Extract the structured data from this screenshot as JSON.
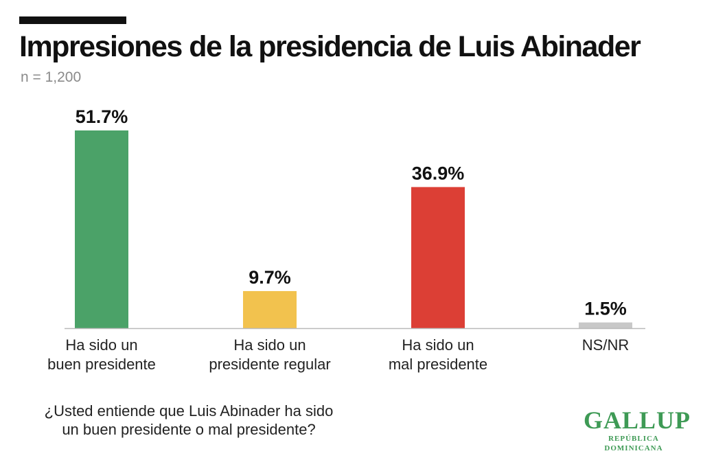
{
  "header": {
    "title": "Impresiones de la presidencia de Luis Abinader",
    "subtitle": "n = 1,200"
  },
  "footer": {
    "question_line1": "¿Usted entiende que Luis Abinader ha sido",
    "question_line2": "un buen presidente o mal presidente?"
  },
  "logo": {
    "word": "GALLUP",
    "sub": "REPÚBLICA DOMINICANA",
    "color": "#3e9a55"
  },
  "chart_data": {
    "type": "bar",
    "categories": [
      [
        "Ha sido un",
        "buen presidente"
      ],
      [
        "Ha sido un",
        "presidente regular"
      ],
      [
        "Ha sido un",
        "mal presidente"
      ],
      [
        "NS/NR"
      ]
    ],
    "values": [
      51.7,
      9.7,
      36.9,
      1.5
    ],
    "value_labels": [
      "51.7%",
      "9.7%",
      "36.9%",
      "1.5%"
    ],
    "colors": [
      "#4ba268",
      "#f2c24e",
      "#dc3f35",
      "#c8c8c8"
    ],
    "title": "Impresiones de la presidencia de Luis Abinader",
    "subtitle": "n = 1,200",
    "xlabel": "",
    "ylabel": "",
    "ylim": [
      0,
      51.7
    ],
    "grid": false,
    "legend": "none"
  }
}
